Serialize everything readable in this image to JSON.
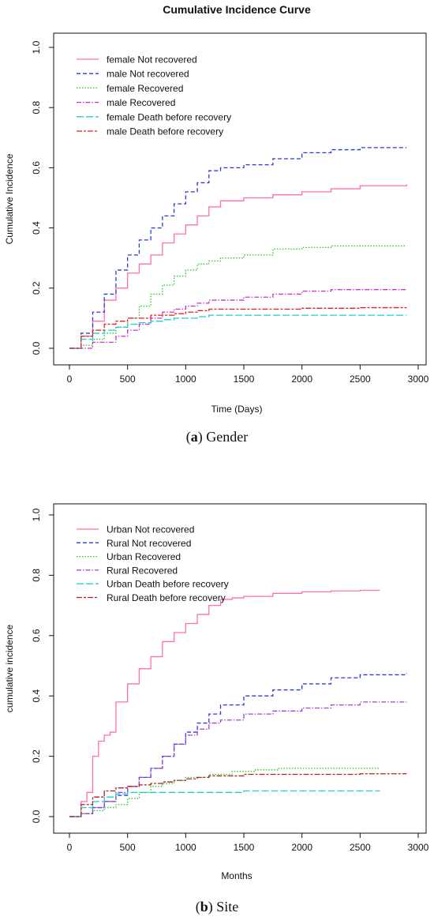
{
  "captions": [
    {
      "tag": "a",
      "text": "Gender"
    },
    {
      "tag": "b",
      "text": "Site"
    }
  ],
  "chart_data": [
    {
      "type": "line",
      "title": "Cumulative Incidence Curve",
      "xlabel": "Time (Days)",
      "ylabel": "Cumulative Incidence",
      "xlim": [
        0,
        3000
      ],
      "ylim": [
        0,
        1.0
      ],
      "xticks": [
        0,
        500,
        1000,
        1500,
        2000,
        2500,
        3000
      ],
      "yticks": [
        0.0,
        0.2,
        0.4,
        0.6,
        0.8,
        1.0
      ],
      "ytick_labels": [
        "0.0",
        "0.2",
        "0.4",
        "0.6",
        "0.8",
        "1.0"
      ],
      "grid": false,
      "legend_position": "top-left",
      "series": [
        {
          "name": "female Not recovered",
          "color": "#ff6eb4",
          "dash": "solid",
          "x": [
            0,
            100,
            200,
            300,
            400,
            500,
            600,
            700,
            800,
            900,
            1000,
            1100,
            1200,
            1300,
            1500,
            1750,
            2000,
            2250,
            2500,
            2900
          ],
          "y": [
            0,
            0.04,
            0.09,
            0.16,
            0.2,
            0.25,
            0.28,
            0.31,
            0.35,
            0.38,
            0.41,
            0.44,
            0.47,
            0.49,
            0.5,
            0.51,
            0.52,
            0.53,
            0.54,
            0.545
          ]
        },
        {
          "name": "male Not recovered",
          "color": "#2b3bd6",
          "dash": "dashed",
          "x": [
            0,
            100,
            200,
            300,
            400,
            500,
            600,
            700,
            800,
            900,
            1000,
            1100,
            1200,
            1300,
            1500,
            1750,
            2000,
            2250,
            2500,
            2900
          ],
          "y": [
            0,
            0.05,
            0.12,
            0.18,
            0.26,
            0.31,
            0.36,
            0.4,
            0.44,
            0.48,
            0.52,
            0.55,
            0.59,
            0.6,
            0.61,
            0.63,
            0.65,
            0.66,
            0.667,
            0.667
          ]
        },
        {
          "name": "female Recovered",
          "color": "#22cc22",
          "dash": "dotted",
          "x": [
            0,
            100,
            200,
            300,
            400,
            500,
            600,
            700,
            800,
            900,
            1000,
            1100,
            1200,
            1300,
            1500,
            1750,
            2000,
            2250,
            2500,
            2900
          ],
          "y": [
            0,
            0.01,
            0.03,
            0.05,
            0.07,
            0.1,
            0.14,
            0.18,
            0.21,
            0.24,
            0.26,
            0.28,
            0.29,
            0.3,
            0.31,
            0.33,
            0.335,
            0.34,
            0.34,
            0.34
          ]
        },
        {
          "name": "male Recovered",
          "color": "#cc33cc",
          "dash": "dashdot",
          "x": [
            0,
            100,
            200,
            300,
            400,
            500,
            600,
            700,
            800,
            900,
            1000,
            1100,
            1200,
            1300,
            1500,
            1750,
            2000,
            2250,
            2500,
            2900
          ],
          "y": [
            0,
            0,
            0.02,
            0.02,
            0.04,
            0.06,
            0.08,
            0.1,
            0.12,
            0.13,
            0.14,
            0.15,
            0.16,
            0.16,
            0.17,
            0.18,
            0.19,
            0.195,
            0.195,
            0.195
          ]
        },
        {
          "name": "female Death before recovery",
          "color": "#22cccc",
          "dash": "longdash",
          "x": [
            0,
            100,
            200,
            300,
            400,
            500,
            600,
            700,
            800,
            900,
            1000,
            1100,
            1200,
            1500,
            2000,
            2500,
            2900
          ],
          "y": [
            0,
            0.03,
            0.05,
            0.06,
            0.07,
            0.08,
            0.085,
            0.09,
            0.095,
            0.1,
            0.1,
            0.105,
            0.11,
            0.11,
            0.11,
            0.11,
            0.11
          ]
        },
        {
          "name": "male Death before recovery",
          "color": "#e81e1e",
          "dash": "twodash",
          "x": [
            0,
            100,
            200,
            300,
            400,
            500,
            600,
            700,
            800,
            900,
            1000,
            1100,
            1200,
            1500,
            2000,
            2500,
            2900
          ],
          "y": [
            0,
            0.04,
            0.06,
            0.08,
            0.09,
            0.1,
            0.1,
            0.11,
            0.11,
            0.115,
            0.12,
            0.125,
            0.13,
            0.13,
            0.133,
            0.135,
            0.135
          ]
        }
      ]
    },
    {
      "type": "line",
      "title": "",
      "xlabel": "Months",
      "ylabel": "cumulative incidence",
      "xlim": [
        0,
        3000
      ],
      "ylim": [
        0,
        1.0
      ],
      "xticks": [
        0,
        500,
        1000,
        1500,
        2000,
        2500,
        3000
      ],
      "yticks": [
        0.0,
        0.2,
        0.4,
        0.6,
        0.8,
        1.0
      ],
      "ytick_labels": [
        "0.0",
        "0.2",
        "0.4",
        "0.6",
        "0.8",
        "1.0"
      ],
      "grid": false,
      "legend_position": "top-left",
      "series": [
        {
          "name": "Urban Not recovered",
          "color": "#ff6eb4",
          "dash": "solid",
          "x": [
            0,
            100,
            150,
            200,
            250,
            300,
            350,
            400,
            500,
            600,
            700,
            800,
            900,
            1000,
            1100,
            1200,
            1300,
            1400,
            1500,
            1750,
            2000,
            2250,
            2500,
            2670
          ],
          "y": [
            0,
            0.05,
            0.08,
            0.2,
            0.25,
            0.27,
            0.28,
            0.38,
            0.44,
            0.49,
            0.53,
            0.58,
            0.61,
            0.64,
            0.67,
            0.7,
            0.72,
            0.725,
            0.73,
            0.74,
            0.745,
            0.748,
            0.75,
            0.75
          ]
        },
        {
          "name": "Rural Not recovered",
          "color": "#2b3bd6",
          "dash": "dashed",
          "x": [
            0,
            100,
            200,
            300,
            400,
            500,
            600,
            700,
            800,
            900,
            1000,
            1100,
            1200,
            1300,
            1500,
            1750,
            2000,
            2250,
            2500,
            2900
          ],
          "y": [
            0,
            0.01,
            0.03,
            0.05,
            0.07,
            0.1,
            0.13,
            0.16,
            0.2,
            0.24,
            0.28,
            0.31,
            0.34,
            0.37,
            0.4,
            0.42,
            0.44,
            0.46,
            0.47,
            0.475
          ]
        },
        {
          "name": "Urban Recovered",
          "color": "#22cc22",
          "dash": "dotted",
          "x": [
            0,
            100,
            200,
            300,
            400,
            500,
            600,
            700,
            800,
            900,
            1000,
            1200,
            1400,
            1600,
            1800,
            2000,
            2670
          ],
          "y": [
            0,
            0.01,
            0.02,
            0.03,
            0.04,
            0.06,
            0.08,
            0.1,
            0.11,
            0.12,
            0.13,
            0.14,
            0.15,
            0.155,
            0.16,
            0.16,
            0.16
          ]
        },
        {
          "name": "Rural Recovered",
          "color": "#9944dd",
          "dash": "dashdot",
          "x": [
            0,
            100,
            200,
            300,
            400,
            500,
            600,
            700,
            800,
            900,
            1000,
            1100,
            1200,
            1300,
            1500,
            1750,
            2000,
            2250,
            2500,
            2900
          ],
          "y": [
            0,
            0.01,
            0.03,
            0.05,
            0.08,
            0.1,
            0.13,
            0.16,
            0.2,
            0.24,
            0.27,
            0.29,
            0.31,
            0.32,
            0.34,
            0.35,
            0.36,
            0.37,
            0.38,
            0.38
          ]
        },
        {
          "name": "Urban Death before recovery",
          "color": "#22cccc",
          "dash": "longdash",
          "x": [
            0,
            100,
            200,
            300,
            400,
            500,
            700,
            1000,
            1500,
            2000,
            2670
          ],
          "y": [
            0,
            0.03,
            0.05,
            0.065,
            0.075,
            0.08,
            0.08,
            0.08,
            0.085,
            0.085,
            0.085
          ]
        },
        {
          "name": "Rural Death before recovery",
          "color": "#b22222",
          "dash": "twodash",
          "x": [
            0,
            100,
            200,
            300,
            400,
            500,
            600,
            700,
            800,
            900,
            1000,
            1100,
            1200,
            1500,
            2000,
            2500,
            2900
          ],
          "y": [
            0,
            0.04,
            0.065,
            0.085,
            0.095,
            0.1,
            0.105,
            0.11,
            0.115,
            0.12,
            0.125,
            0.13,
            0.135,
            0.14,
            0.14,
            0.142,
            0.142
          ]
        }
      ]
    }
  ]
}
